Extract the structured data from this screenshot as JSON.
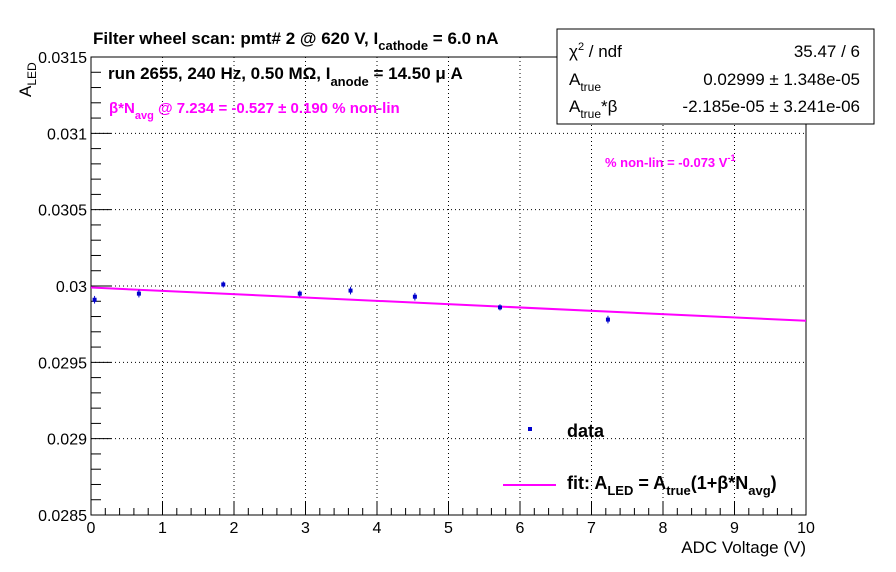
{
  "chart_data": {
    "type": "scatter",
    "title_parts": [
      "Filter wheel scan: pmt#   2 @   620 V, I",
      "cathode",
      " = 6.0 nA"
    ],
    "subtitle_parts": [
      "run 2655, 240 Hz, 0.50 MΩ, I",
      "anode",
      " = 14.50 μ A"
    ],
    "xlabel": "ADC Voltage (V)",
    "ylabel_parts": [
      "A",
      "LED"
    ],
    "xlim": [
      0,
      10
    ],
    "ylim": [
      0.0285,
      0.0315
    ],
    "x_ticks": [
      "0",
      "1",
      "2",
      "3",
      "4",
      "5",
      "6",
      "7",
      "8",
      "9",
      "10"
    ],
    "y_ticks": [
      "0.0285",
      "0.029",
      "0.0295",
      "0.03",
      "0.0305",
      "0.031",
      "0.0315"
    ],
    "grid": true,
    "series": [
      {
        "name": "data",
        "color": "#0000cc",
        "x": [
          0.05,
          0.67,
          1.85,
          2.92,
          3.63,
          4.53,
          5.72,
          7.23
        ],
        "y": [
          0.02991,
          0.02995,
          0.03001,
          0.02995,
          0.02997,
          0.02993,
          0.02986,
          0.02978
        ],
        "yerr": [
          2.5e-05,
          2.5e-05,
          2e-05,
          2e-05,
          2.5e-05,
          2.5e-05,
          2e-05,
          2.5e-05
        ]
      }
    ],
    "fit": {
      "color": "#ff00ff",
      "x": [
        0,
        10
      ],
      "y": [
        0.02999,
        0.029772
      ]
    },
    "annotations": {
      "beta_parts": [
        "β*N",
        "avg",
        " @ 7.234 = -0.527 ± 0.190 % non-lin"
      ],
      "nonlin_parts": [
        "% non-lin = -0.073 V",
        "-1"
      ]
    },
    "legend": {
      "placement": "bottom-right",
      "data_label": "data",
      "fit_parts": [
        "fit: A",
        "LED",
        " = A",
        "true",
        "(1+β*N",
        "avg",
        ")"
      ]
    },
    "stats_box": {
      "placement": "top-right",
      "rows": [
        {
          "label_parts": [
            "χ",
            "2",
            " / ndf"
          ],
          "value": "35.47 / 6"
        },
        {
          "label_parts": [
            "A",
            "true"
          ],
          "value": "0.02999 ± 1.348e-05"
        },
        {
          "label_parts": [
            "A",
            "true",
            "*β"
          ],
          "value": "-2.185e-05 ± 3.241e-06"
        }
      ]
    }
  }
}
